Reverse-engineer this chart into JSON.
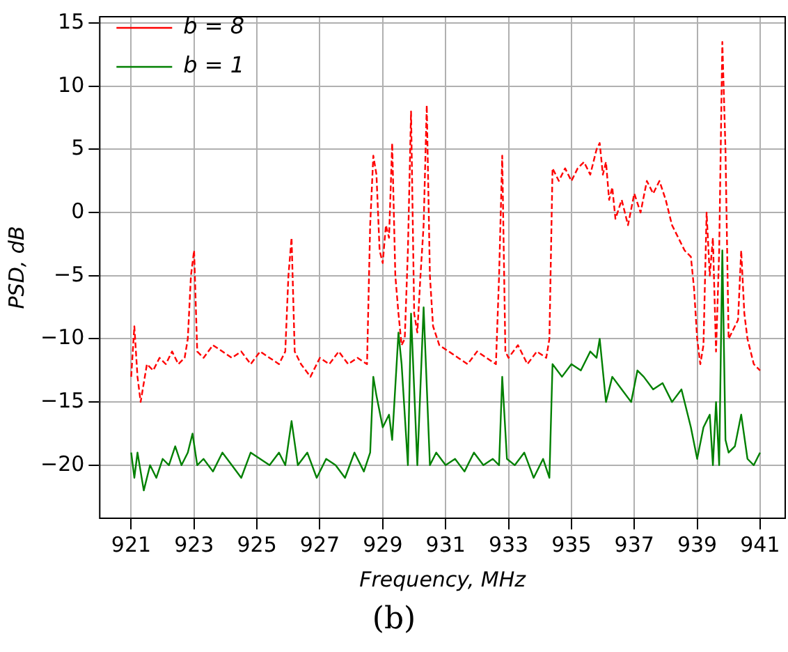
{
  "chart_data": {
    "type": "line",
    "xlabel": "Frequency, MHz",
    "ylabel": "PSD, dB",
    "annotations": [
      "(b)"
    ],
    "xlim": [
      920,
      941.8
    ],
    "ylim": [
      -24.2,
      15.5
    ],
    "xticks": [
      921,
      923,
      925,
      927,
      929,
      931,
      933,
      935,
      937,
      939,
      941
    ],
    "yticks": [
      -20,
      -15,
      -10,
      -5,
      0,
      5,
      10,
      15
    ],
    "grid": true,
    "legend": "top left",
    "marker": "none",
    "series": [
      {
        "name": "b = 8",
        "color": "#ff0000",
        "line_style": "dashed",
        "x": [
          921,
          921.1,
          921.2,
          921.3,
          921.5,
          921.7,
          921.9,
          922.1,
          922.3,
          922.5,
          922.7,
          922.8,
          922.9,
          923,
          923.1,
          923.3,
          923.6,
          923.9,
          924.2,
          924.5,
          924.8,
          925.1,
          925.4,
          925.7,
          925.9,
          926,
          926.1,
          926.2,
          926.4,
          926.7,
          927,
          927.3,
          927.6,
          927.9,
          928.2,
          928.5,
          928.6,
          928.7,
          928.8,
          928.9,
          929,
          929.1,
          929.2,
          929.3,
          929.4,
          929.5,
          929.6,
          929.7,
          929.8,
          929.9,
          930,
          930.1,
          930.2,
          930.3,
          930.4,
          930.5,
          930.6,
          930.8,
          931.1,
          931.4,
          931.7,
          932,
          932.3,
          932.6,
          932.7,
          932.8,
          932.9,
          933,
          933.3,
          933.6,
          933.9,
          934.2,
          934.3,
          934.4,
          934.6,
          934.8,
          935,
          935.2,
          935.4,
          935.6,
          935.8,
          935.9,
          936,
          936.1,
          936.2,
          936.3,
          936.4,
          936.6,
          936.8,
          937,
          937.2,
          937.4,
          937.6,
          937.8,
          938,
          938.2,
          938.4,
          938.6,
          938.8,
          938.9,
          939,
          939.1,
          939.2,
          939.3,
          939.4,
          939.5,
          939.6,
          939.7,
          939.8,
          939.9,
          940,
          940.1,
          940.2,
          940.3,
          940.4,
          940.5,
          940.6,
          940.8,
          941
        ],
        "values": [
          -13,
          -9,
          -13,
          -15,
          -12,
          -12.5,
          -11.5,
          -12,
          -11,
          -12,
          -11.5,
          -10,
          -5,
          -3,
          -11,
          -11.5,
          -10.5,
          -11,
          -11.5,
          -11,
          -12,
          -11,
          -11.5,
          -12,
          -11,
          -5,
          -2,
          -11,
          -12,
          -13,
          -11.5,
          -12,
          -11,
          -12,
          -11.5,
          -12,
          -1,
          4.5,
          3,
          -3,
          -4,
          -1,
          -2,
          5.5,
          -5,
          -8,
          -10.5,
          -10,
          -3,
          8,
          -8,
          -9.5,
          -5,
          -1,
          8.5,
          -5,
          -9,
          -10.5,
          -11,
          -11.5,
          -12,
          -11,
          -11.5,
          -12,
          -5,
          4.5,
          -11,
          -11.5,
          -10.5,
          -12,
          -11,
          -11.5,
          -10,
          3.5,
          2.5,
          3.5,
          2.5,
          3.5,
          4,
          3,
          5,
          5.5,
          3,
          4,
          1,
          2,
          -0.5,
          1,
          -1,
          1.5,
          0,
          2.5,
          1.5,
          2.5,
          1,
          -1,
          -2,
          -3,
          -3.5,
          -6,
          -10,
          -12,
          -10.5,
          0,
          -5,
          -2,
          -11,
          -3,
          13.5,
          5,
          -10,
          -9.5,
          -9,
          -8.5,
          -3,
          -8,
          -10,
          -12,
          -12.5
        ]
      },
      {
        "name": "b = 1",
        "color": "#008000",
        "line_style": "solid",
        "x": [
          921,
          921.1,
          921.2,
          921.4,
          921.6,
          921.8,
          922,
          922.2,
          922.4,
          922.6,
          922.8,
          922.95,
          923.1,
          923.3,
          923.6,
          923.9,
          924.2,
          924.5,
          924.8,
          925.1,
          925.4,
          925.7,
          925.9,
          926.1,
          926.3,
          926.6,
          926.9,
          927.2,
          927.5,
          927.8,
          928.1,
          928.4,
          928.6,
          928.7,
          928.8,
          929,
          929.2,
          929.3,
          929.5,
          929.6,
          929.8,
          929.9,
          930.1,
          930.3,
          930.5,
          930.7,
          931,
          931.3,
          931.6,
          931.9,
          932.2,
          932.5,
          932.7,
          932.8,
          932.95,
          933.2,
          933.5,
          933.8,
          934.1,
          934.3,
          934.4,
          934.7,
          935,
          935.3,
          935.6,
          935.8,
          935.9,
          936.1,
          936.3,
          936.6,
          936.9,
          937.1,
          937.3,
          937.6,
          937.9,
          938.2,
          938.5,
          938.8,
          939,
          939.2,
          939.4,
          939.5,
          939.6,
          939.7,
          939.8,
          939.9,
          940,
          940.2,
          940.4,
          940.6,
          940.8,
          941
        ],
        "values": [
          -19,
          -21,
          -19,
          -22,
          -20,
          -21,
          -19.5,
          -20,
          -18.5,
          -20,
          -19,
          -17.5,
          -20,
          -19.5,
          -20.5,
          -19,
          -20,
          -21,
          -19,
          -19.5,
          -20,
          -19,
          -20,
          -16.5,
          -20,
          -19,
          -21,
          -19.5,
          -20,
          -21,
          -19,
          -20.5,
          -19,
          -13,
          -14.5,
          -17,
          -16,
          -18,
          -9.5,
          -12,
          -20,
          -8,
          -20,
          -7.5,
          -20,
          -19,
          -20,
          -19.5,
          -20.5,
          -19,
          -20,
          -19.5,
          -20,
          -13,
          -19.5,
          -20,
          -19,
          -21,
          -19.5,
          -21,
          -12,
          -13,
          -12,
          -12.5,
          -11,
          -11.5,
          -10,
          -15,
          -13,
          -14,
          -15,
          -12.5,
          -13,
          -14,
          -13.5,
          -15,
          -14,
          -17,
          -19.5,
          -17,
          -16,
          -20,
          -15,
          -20,
          -3,
          -18,
          -19,
          -18.5,
          -16,
          -19.5,
          -20,
          -19
        ]
      }
    ]
  }
}
